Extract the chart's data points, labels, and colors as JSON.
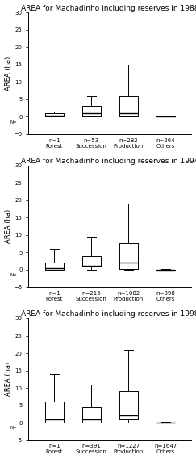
{
  "titles": [
    "AREA for Machadinho including reserves in 1988",
    "AREA for Machadinho including reserves in 1994",
    "AREA for Machadinho including reserves in 1998"
  ],
  "ylabel": "AREA (ha)",
  "categories": [
    "Forest",
    "Succession",
    "Production",
    "Others"
  ],
  "ylim": [
    -5,
    30
  ],
  "yticks": [
    -5,
    0,
    5,
    10,
    15,
    20,
    25,
    30
  ],
  "boxplots": [
    {
      "year": "1988",
      "n_labels": [
        "n=1",
        "n=53",
        "n=282",
        "n=264"
      ],
      "data": [
        {
          "whislo": 0.0,
          "q1": 0.0,
          "med": 0.3,
          "q3": 1.0,
          "whishi": 1.5
        },
        {
          "whislo": 0.0,
          "q1": 0.0,
          "med": 1.0,
          "q3": 3.0,
          "whishi": 6.0
        },
        {
          "whislo": 0.0,
          "q1": 0.0,
          "med": 1.0,
          "q3": 6.0,
          "whishi": 15.0
        },
        {
          "whislo": 0.0,
          "q1": 0.0,
          "med": 0.0,
          "q3": 0.0,
          "whishi": 0.2
        }
      ]
    },
    {
      "year": "1994",
      "n_labels": [
        "n=1",
        "n=216",
        "n=1082",
        "n=898"
      ],
      "data": [
        {
          "whislo": 0.0,
          "q1": 0.0,
          "med": 0.5,
          "q3": 2.0,
          "whishi": 6.0
        },
        {
          "whislo": 0.0,
          "q1": 0.8,
          "med": 1.2,
          "q3": 4.0,
          "whishi": 9.5
        },
        {
          "whislo": 0.0,
          "q1": 0.2,
          "med": 2.0,
          "q3": 7.5,
          "whishi": 19.0
        },
        {
          "whislo": 0.0,
          "q1": 0.0,
          "med": 0.0,
          "q3": 0.0,
          "whishi": 0.2
        }
      ]
    },
    {
      "year": "1998",
      "n_labels": [
        "n=1",
        "n=391",
        "n=1227",
        "n=1647"
      ],
      "data": [
        {
          "whislo": 0.0,
          "q1": 0.0,
          "med": 1.0,
          "q3": 6.0,
          "whishi": 14.0
        },
        {
          "whislo": 0.0,
          "q1": 0.0,
          "med": 1.0,
          "q3": 4.5,
          "whishi": 11.0
        },
        {
          "whislo": 0.0,
          "q1": 1.0,
          "med": 2.0,
          "q3": 9.0,
          "whishi": 21.0
        },
        {
          "whislo": 0.0,
          "q1": 0.0,
          "med": 0.0,
          "q3": 0.0,
          "whishi": 0.2
        }
      ]
    }
  ],
  "tick_fontsize": 5,
  "n_label_fontsize": 4,
  "label_fontsize": 6,
  "title_fontsize": 6.5,
  "box_width": 0.5,
  "figsize": [
    2.43,
    5.68
  ],
  "dpi": 100,
  "background": "#ffffff"
}
